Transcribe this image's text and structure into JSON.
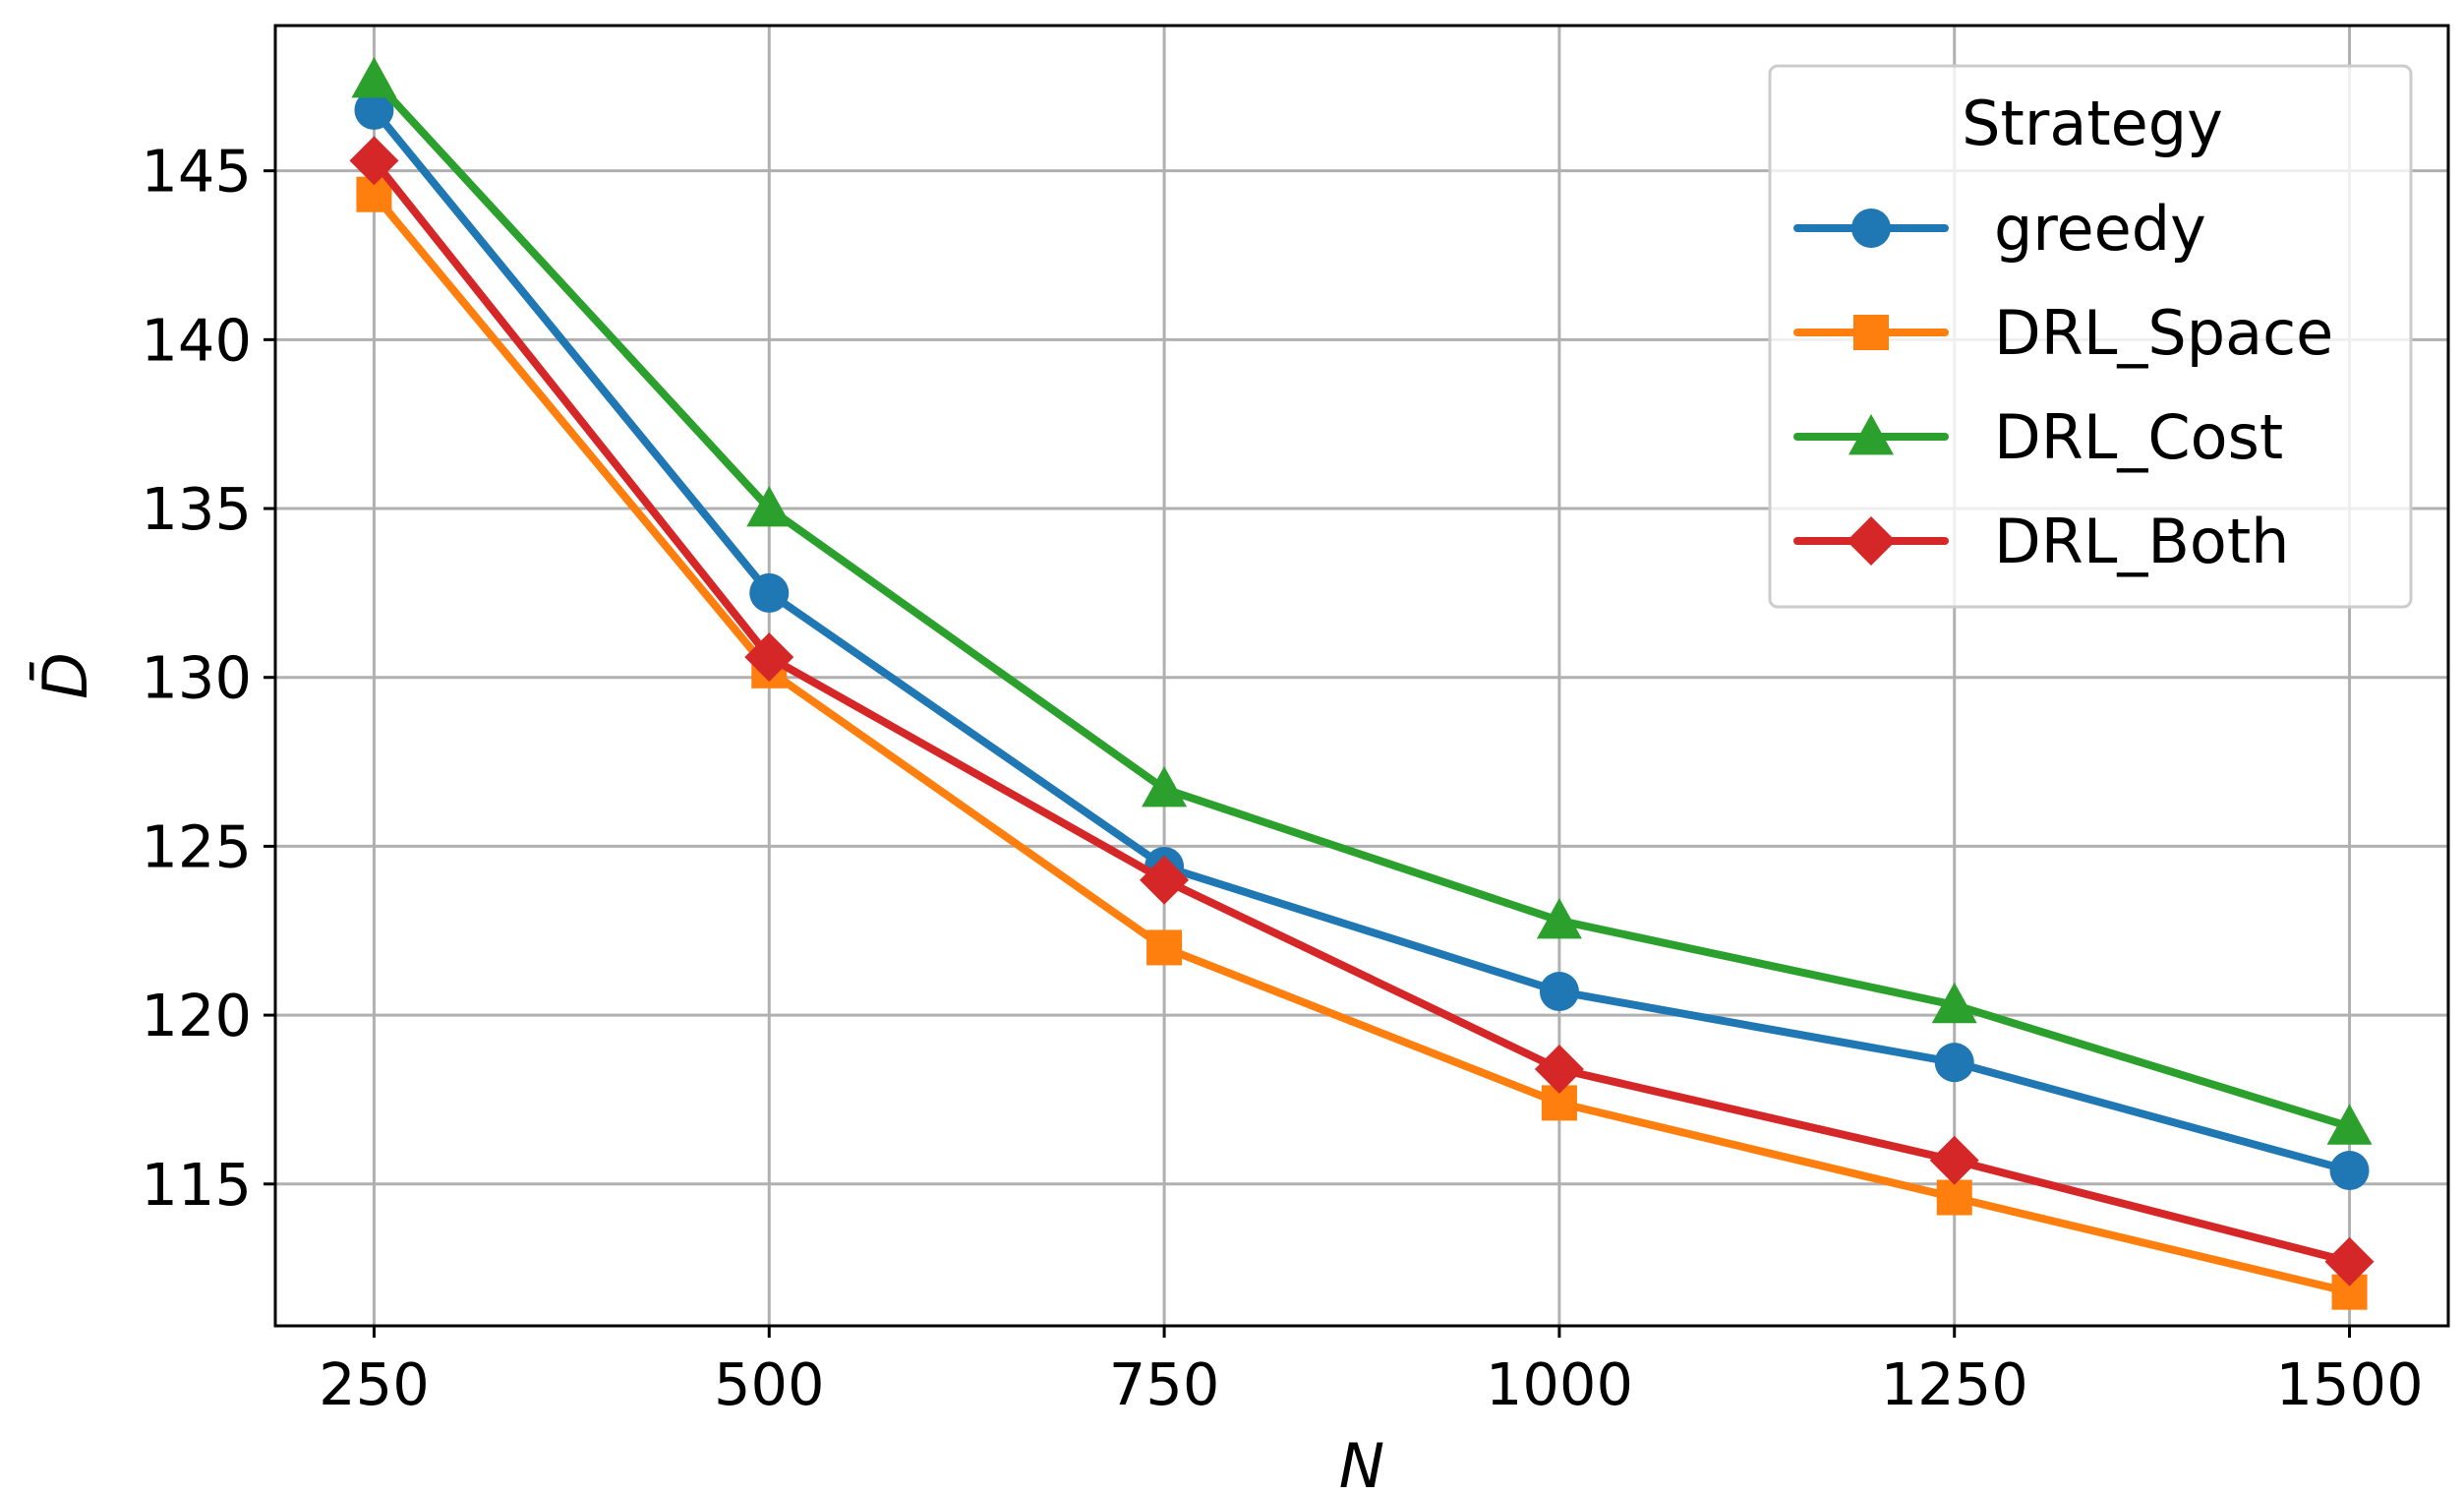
{
  "chart_data": {
    "type": "line",
    "title": "",
    "xlabel": "N",
    "ylabel": "D̄",
    "x": [
      250,
      500,
      750,
      1000,
      1250,
      1500
    ],
    "xticks": [
      "250",
      "500",
      "750",
      "1000",
      "1250",
      "1500"
    ],
    "yticks": [
      "115",
      "120",
      "125",
      "130",
      "135",
      "140",
      "145"
    ],
    "xlim": [
      187.5,
      1562.5
    ],
    "ylim": [
      110.8,
      149.3
    ],
    "grid": true,
    "legend": {
      "title": "Strategy",
      "position": "top-right"
    },
    "series": [
      {
        "name": "greedy",
        "color": "#1f77b4",
        "marker": "circle",
        "values": [
          146.8,
          132.5,
          124.4,
          120.7,
          118.6,
          115.4
        ]
      },
      {
        "name": "DRL_Space",
        "color": "#ff7f0e",
        "marker": "square",
        "values": [
          144.3,
          130.2,
          122.0,
          117.4,
          114.6,
          111.8
        ]
      },
      {
        "name": "DRL_Cost",
        "color": "#2ca02c",
        "marker": "triangle",
        "values": [
          147.7,
          135.0,
          126.7,
          122.8,
          120.3,
          116.7
        ]
      },
      {
        "name": "DRL_Both",
        "color": "#d62728",
        "marker": "diamond",
        "values": [
          145.3,
          130.6,
          124.0,
          118.4,
          115.7,
          112.7
        ]
      }
    ]
  }
}
